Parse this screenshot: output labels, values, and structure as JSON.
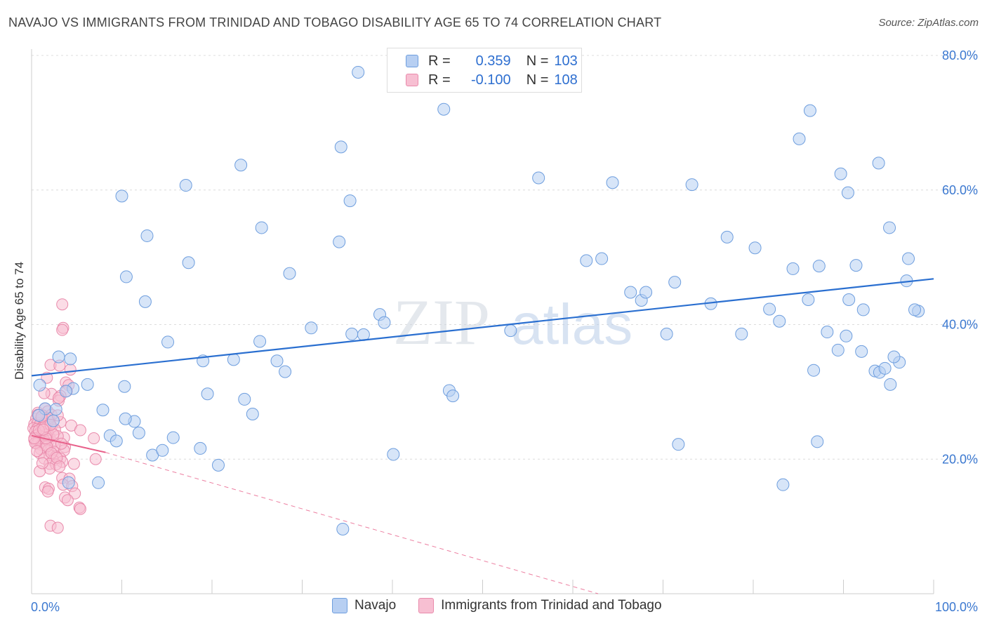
{
  "title": "NAVAJO VS IMMIGRANTS FROM TRINIDAD AND TOBAGO DISABILITY AGE 65 TO 74 CORRELATION CHART",
  "source": "Source: ZipAtlas.com",
  "watermark": {
    "zip": "ZIP",
    "atlas": "atlas"
  },
  "legend_stats": [
    {
      "r_label": "R =",
      "r_value": "0.359",
      "n_label": "N =",
      "n_value": "103"
    },
    {
      "r_label": "R =",
      "r_value": "-0.100",
      "n_label": "N =",
      "n_value": "108"
    }
  ],
  "bottom_legend": [
    "Navajo",
    "Immigrants from Trinidad and Tobago"
  ],
  "colors": {
    "blue_fill": "#b7cff2",
    "blue_stroke": "#6e9ede",
    "blue_line": "#2a6fd0",
    "pink_fill": "#f7bfd2",
    "pink_stroke": "#e98aab",
    "pink_line": "#e8608a",
    "axis_text": "#3b78d0"
  },
  "chart_data": {
    "type": "scatter",
    "title": "NAVAJO VS IMMIGRANTS FROM TRINIDAD AND TOBAGO DISABILITY AGE 65 TO 74 CORRELATION CHART",
    "xlabel": "",
    "ylabel": "Disability Age 65 to 74",
    "xlim": [
      0,
      100
    ],
    "ylim": [
      0,
      82
    ],
    "x_tick_labels": [
      "0.0%",
      "100.0%"
    ],
    "y_ticks": [
      20,
      40,
      60,
      80
    ],
    "y_tick_labels": [
      "20.0%",
      "40.0%",
      "60.0%",
      "80.0%"
    ],
    "grid": true,
    "series": [
      {
        "name": "Navajo",
        "r": 0.359,
        "n": 103,
        "trend": {
          "x": [
            0,
            100
          ],
          "y": [
            32.4,
            46.8
          ]
        },
        "points": [
          [
            36.2,
            77.5
          ],
          [
            45.7,
            72
          ],
          [
            34.3,
            66.4
          ],
          [
            23.2,
            63.7
          ],
          [
            17.1,
            60.7
          ],
          [
            10,
            59.1
          ],
          [
            35.3,
            58.4
          ],
          [
            25.5,
            54.4
          ],
          [
            12.8,
            53.2
          ],
          [
            34.1,
            52.3
          ],
          [
            17.4,
            49.2
          ],
          [
            28.6,
            47.6
          ],
          [
            10.5,
            47.1
          ],
          [
            12.6,
            43.4
          ],
          [
            38.6,
            41.5
          ],
          [
            31,
            39.5
          ],
          [
            35.5,
            38.6
          ],
          [
            15.1,
            37.4
          ],
          [
            25.3,
            37.5
          ],
          [
            3,
            35.2
          ],
          [
            19,
            34.6
          ],
          [
            22.4,
            34.8
          ],
          [
            27.2,
            34.6
          ],
          [
            6.2,
            31.1
          ],
          [
            4.6,
            30.5
          ],
          [
            0.9,
            31
          ],
          [
            3.8,
            30.1
          ],
          [
            10.3,
            30.8
          ],
          [
            19.5,
            29.7
          ],
          [
            23.6,
            28.9
          ],
          [
            46.3,
            30.2
          ],
          [
            46.7,
            29.4
          ],
          [
            1.5,
            27.5
          ],
          [
            2.7,
            27.4
          ],
          [
            0.8,
            26.5
          ],
          [
            7.9,
            27.3
          ],
          [
            24.5,
            26.7
          ],
          [
            2.4,
            25.7
          ],
          [
            11.4,
            25.6
          ],
          [
            8.7,
            23.5
          ],
          [
            9.4,
            22.7
          ],
          [
            15.7,
            23.2
          ],
          [
            11.9,
            23.9
          ],
          [
            18.7,
            21.6
          ],
          [
            13.4,
            20.6
          ],
          [
            14.5,
            21.3
          ],
          [
            20.7,
            19.1
          ],
          [
            40.1,
            20.7
          ],
          [
            4.1,
            16.5
          ],
          [
            7.4,
            16.5
          ],
          [
            34.5,
            9.6
          ],
          [
            56.2,
            61.8
          ],
          [
            64.4,
            61.1
          ],
          [
            73.2,
            60.8
          ],
          [
            61.5,
            49.5
          ],
          [
            63.2,
            49.8
          ],
          [
            66.4,
            44.8
          ],
          [
            67.6,
            43.6
          ],
          [
            68.1,
            44.8
          ],
          [
            71.3,
            46.3
          ],
          [
            77.1,
            53
          ],
          [
            80.2,
            51.4
          ],
          [
            81.8,
            42.3
          ],
          [
            82.9,
            40.5
          ],
          [
            84.4,
            48.3
          ],
          [
            86.1,
            43.7
          ],
          [
            87.3,
            48.7
          ],
          [
            88.2,
            38.9
          ],
          [
            86.7,
            33.2
          ],
          [
            90.6,
            43.7
          ],
          [
            92.2,
            42.2
          ],
          [
            91.4,
            48.8
          ],
          [
            89.7,
            62.4
          ],
          [
            90.5,
            59.6
          ],
          [
            85.1,
            67.6
          ],
          [
            86.3,
            71.8
          ],
          [
            93.9,
            64
          ],
          [
            95.1,
            54.4
          ],
          [
            97,
            46.5
          ],
          [
            98.3,
            42
          ],
          [
            97.2,
            49.8
          ],
          [
            97.9,
            42.2
          ],
          [
            92,
            36
          ],
          [
            93.5,
            33.1
          ],
          [
            94,
            32.9
          ],
          [
            94.6,
            33.5
          ],
          [
            96.2,
            34.4
          ],
          [
            95.6,
            35.2
          ],
          [
            95.2,
            31.1
          ],
          [
            89.4,
            36.2
          ],
          [
            90.3,
            38.3
          ],
          [
            87.1,
            22.6
          ],
          [
            83.3,
            16.2
          ],
          [
            75.3,
            43.1
          ],
          [
            78.7,
            38.6
          ],
          [
            70.4,
            38.6
          ],
          [
            71.7,
            22.2
          ],
          [
            53.1,
            39.1
          ],
          [
            39.1,
            40.3
          ],
          [
            36.8,
            38.5
          ],
          [
            28.1,
            33
          ],
          [
            10.4,
            26
          ],
          [
            4.3,
            34.9
          ]
        ]
      },
      {
        "name": "Immigrants from Trinidad and Tobago",
        "r": -0.1,
        "n": 108,
        "trend": {
          "x": [
            0,
            8.2
          ],
          "y": [
            23.5,
            21.0
          ]
        },
        "trend_dashed": {
          "x": [
            8.2,
            62.8
          ],
          "y": [
            21.0,
            0
          ]
        },
        "points": [
          [
            3.4,
            43
          ],
          [
            3.5,
            39.5
          ],
          [
            3.4,
            39.2
          ],
          [
            2.1,
            34
          ],
          [
            4.3,
            33.3
          ],
          [
            3.1,
            33.9
          ],
          [
            1.7,
            32.1
          ],
          [
            3.8,
            31.4
          ],
          [
            4.1,
            31
          ],
          [
            3.9,
            30.1
          ],
          [
            2.2,
            29.7
          ],
          [
            1.4,
            29.8
          ],
          [
            3.2,
            29.4
          ],
          [
            3,
            28.7
          ],
          [
            3,
            29.1
          ],
          [
            1.5,
            27.5
          ],
          [
            1.8,
            27.1
          ],
          [
            0.7,
            26.9
          ],
          [
            1.2,
            26.5
          ],
          [
            2.2,
            26.6
          ],
          [
            0.5,
            26
          ],
          [
            1.1,
            25.9
          ],
          [
            1.9,
            25.8
          ],
          [
            3.2,
            25.5
          ],
          [
            0.3,
            25.2
          ],
          [
            0.7,
            25.4
          ],
          [
            0.9,
            25.1
          ],
          [
            1.4,
            25.3
          ],
          [
            1.7,
            25.2
          ],
          [
            4.4,
            25
          ],
          [
            0.2,
            24.6
          ],
          [
            0.6,
            24.5
          ],
          [
            1.2,
            24.7
          ],
          [
            1.6,
            24.6
          ],
          [
            2.2,
            24.8
          ],
          [
            5.4,
            24.3
          ],
          [
            0.4,
            24.1
          ],
          [
            0.9,
            23.9
          ],
          [
            1.3,
            24
          ],
          [
            1.8,
            23.8
          ],
          [
            0.5,
            23.5
          ],
          [
            1,
            23.4
          ],
          [
            1.6,
            23.6
          ],
          [
            2,
            23.3
          ],
          [
            3.6,
            23.2
          ],
          [
            6.9,
            23.1
          ],
          [
            0.3,
            22.9
          ],
          [
            0.8,
            22.8
          ],
          [
            1.3,
            22.6
          ],
          [
            1.9,
            22.7
          ],
          [
            2.4,
            22.5
          ],
          [
            0.6,
            22.3
          ],
          [
            1.1,
            22.1
          ],
          [
            1.5,
            22
          ],
          [
            2.6,
            21.9
          ],
          [
            3.7,
            21.8
          ],
          [
            1,
            21.5
          ],
          [
            1.8,
            21.3
          ],
          [
            2.5,
            21.1
          ],
          [
            3.6,
            21.3
          ],
          [
            0.9,
            20.9
          ],
          [
            2,
            20.6
          ],
          [
            2.7,
            20.4
          ],
          [
            1.4,
            20.1
          ],
          [
            3.2,
            20.1
          ],
          [
            7.1,
            20
          ],
          [
            2.4,
            19.8
          ],
          [
            3.4,
            19.6
          ],
          [
            4.7,
            19.3
          ],
          [
            2,
            19.3
          ],
          [
            2.7,
            19.2
          ],
          [
            2,
            18.6
          ],
          [
            0.9,
            18.2
          ],
          [
            3.4,
            17.2
          ],
          [
            4.2,
            17.1
          ],
          [
            3.5,
            16.2
          ],
          [
            4.5,
            16
          ],
          [
            1.5,
            15.8
          ],
          [
            1.9,
            15.6
          ],
          [
            1.8,
            15.2
          ],
          [
            4.8,
            14.9
          ],
          [
            3.7,
            14.3
          ],
          [
            4,
            13.9
          ],
          [
            5.3,
            12.8
          ],
          [
            5.4,
            12.6
          ],
          [
            2.1,
            10.1
          ],
          [
            2.9,
            9.8
          ],
          [
            1.9,
            26.1
          ],
          [
            2.6,
            24.4
          ],
          [
            2.9,
            23.4
          ],
          [
            0.4,
            22.4
          ],
          [
            1.7,
            21.9
          ],
          [
            2.2,
            20.9
          ],
          [
            2.8,
            20.2
          ],
          [
            1.2,
            19.4
          ],
          [
            3.1,
            18.9
          ],
          [
            0.7,
            26.6
          ],
          [
            1.5,
            24.9
          ],
          [
            2.4,
            23.7
          ],
          [
            3.3,
            22.3
          ],
          [
            0.3,
            23.1
          ],
          [
            0.8,
            24.3
          ],
          [
            1.1,
            26.3
          ],
          [
            2.1,
            25.1
          ],
          [
            1.6,
            23.1
          ],
          [
            1.3,
            24.4
          ],
          [
            0.6,
            21.2
          ],
          [
            2.9,
            26.5
          ]
        ]
      }
    ]
  }
}
